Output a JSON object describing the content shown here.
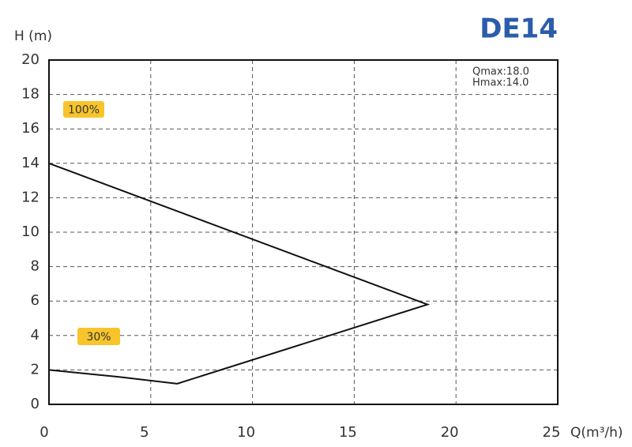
{
  "chart_data": {
    "type": "line",
    "title": "DE14",
    "title_color": "#2a5caa",
    "y_label": "H (m)",
    "x_label": "Q(m³/h)",
    "annotations": [
      "Qmax:18.0",
      "Hmax:14.0"
    ],
    "badges": [
      "100%",
      "30%"
    ],
    "badge_color": "#f7c52b",
    "xlim": [
      0,
      25
    ],
    "xticks": [
      0,
      5,
      10,
      15,
      20,
      25
    ],
    "ylim": [
      0,
      20
    ],
    "yticks": [
      0,
      2,
      4,
      6,
      8,
      10,
      12,
      14,
      16,
      18,
      20
    ],
    "grid": true,
    "series": [
      {
        "color": "#111111",
        "x": [
          0,
          18.6,
          6.3,
          3.4,
          0
        ],
        "values": [
          14,
          5.8,
          1.2,
          1.6,
          2
        ]
      }
    ]
  }
}
